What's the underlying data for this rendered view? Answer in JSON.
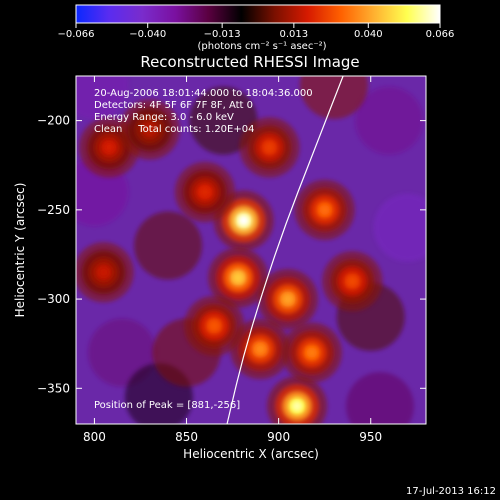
{
  "chart_data": {
    "type": "heatmap",
    "title": "Reconstructed RHESSI Image",
    "xlabel": "Heliocentric X (arcsec)",
    "ylabel": "Heliocentric Y (arcsec)",
    "xlim": [
      790,
      980
    ],
    "ylim": [
      -370,
      -175
    ],
    "x_ticks": [
      800,
      850,
      900,
      950
    ],
    "x_tick_labels": [
      "800",
      "850",
      "900",
      "950"
    ],
    "y_ticks": [
      -200,
      -250,
      -300,
      -350
    ],
    "y_tick_labels": [
      "−200",
      "−250",
      "−300",
      "−350"
    ],
    "colorbar": {
      "range": [
        -0.066,
        0.066
      ],
      "ticks": [
        -0.066,
        -0.04,
        -0.013,
        0.013,
        0.04,
        0.066
      ],
      "tick_labels": [
        "−0.066",
        "−0.040",
        "−0.013",
        "0.013",
        "0.040",
        "0.066"
      ],
      "units": "(photons cm⁻² s⁻¹ asec⁻²)",
      "colors": [
        "#0a28ff",
        "#5a2cf0",
        "#7a2ccc",
        "#7a10a0",
        "#5a0040",
        "#000000",
        "#7a1000",
        "#d61a00",
        "#ff6000",
        "#ffb030",
        "#ffff50",
        "#ffffff"
      ]
    },
    "annotations": [
      "20-Aug-2006 18:01:44.000 to 18:04:36.000",
      "Detectors: 4F 5F 6F 7F 8F, Att 0",
      "Energy Range: 3.0 - 6.0 keV",
      "Clean     Total counts: 1.20E+04"
    ],
    "peak_label": "Position of Peak = [881,-256]",
    "peak": {
      "x": 881,
      "y": -256
    },
    "sources": [
      {
        "x": 881,
        "y": -256,
        "value": 0.066
      },
      {
        "x": 878,
        "y": -288,
        "value": 0.046
      },
      {
        "x": 910,
        "y": -360,
        "value": 0.06
      },
      {
        "x": 905,
        "y": -300,
        "value": 0.04
      },
      {
        "x": 925,
        "y": -250,
        "value": 0.032
      },
      {
        "x": 890,
        "y": -328,
        "value": 0.036
      },
      {
        "x": 865,
        "y": -315,
        "value": 0.028
      },
      {
        "x": 918,
        "y": -330,
        "value": 0.034
      },
      {
        "x": 895,
        "y": -215,
        "value": 0.024
      },
      {
        "x": 860,
        "y": -240,
        "value": 0.02
      },
      {
        "x": 940,
        "y": -290,
        "value": 0.026
      },
      {
        "x": 808,
        "y": -215,
        "value": 0.018
      },
      {
        "x": 805,
        "y": -285,
        "value": 0.016
      },
      {
        "x": 830,
        "y": -205,
        "value": 0.014
      }
    ],
    "limb_points": [
      [
        872,
        -370
      ],
      [
        880,
        -335
      ],
      [
        890,
        -300
      ],
      [
        903,
        -260
      ],
      [
        918,
        -220
      ],
      [
        935,
        -175
      ]
    ],
    "date_stamp": "17-Jul-2013 16:12"
  }
}
